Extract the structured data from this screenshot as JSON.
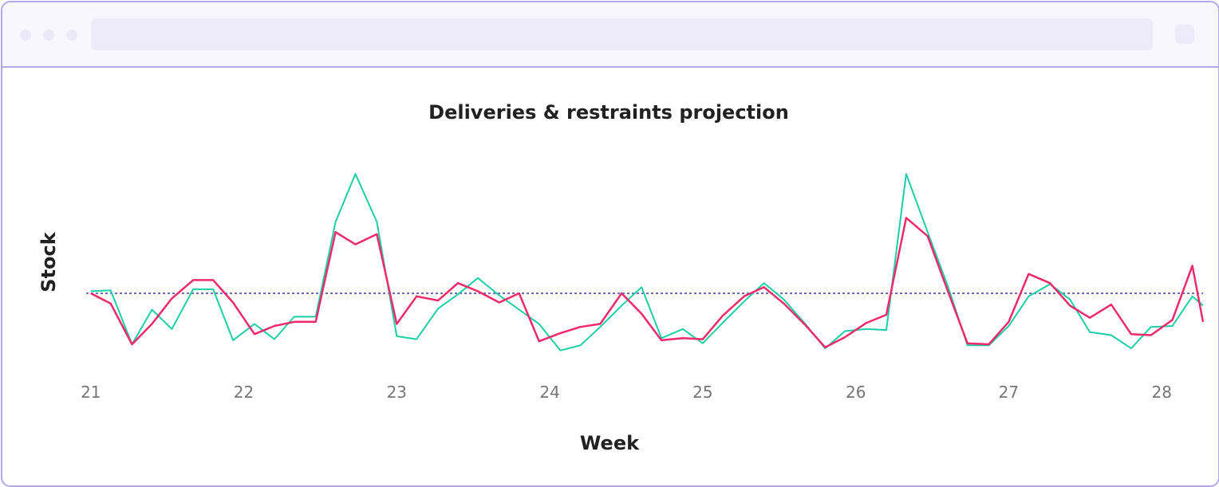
{
  "window": {
    "address_text": ""
  },
  "chart_data": {
    "type": "line",
    "title": "Deliveries & restraints projection",
    "xlabel": "Week",
    "ylabel": "Stock",
    "x_ticks": [
      "21",
      "22",
      "23",
      "24",
      "25",
      "26",
      "27",
      "28"
    ],
    "xlim": [
      20.97,
      28.27
    ],
    "ylim": [
      -5.2,
      8
    ],
    "y_ticks_shown": false,
    "grid": false,
    "legend": "none",
    "baseline": {
      "value": 0,
      "style": "dotted",
      "color": "#3f3fb5"
    },
    "x": [
      21.0,
      21.13,
      21.27,
      21.4,
      21.53,
      21.67,
      21.8,
      21.93,
      22.07,
      22.2,
      22.33,
      22.47,
      22.6,
      22.73,
      22.87,
      23.0,
      23.13,
      23.27,
      23.4,
      23.53,
      23.67,
      23.8,
      23.93,
      24.07,
      24.2,
      24.33,
      24.47,
      24.6,
      24.73,
      24.87,
      25.0,
      25.13,
      25.27,
      25.4,
      25.53,
      25.67,
      25.8,
      25.93,
      26.07,
      26.2,
      26.33,
      26.47,
      26.6,
      26.73,
      26.87,
      27.0,
      27.13,
      27.27,
      27.4,
      27.53,
      27.67,
      27.8,
      27.93,
      28.07,
      28.2
    ],
    "series": [
      {
        "color": "#1bcfa6",
        "values": [
          0.2,
          0.3,
          -5.0,
          -1.6,
          -3.5,
          0.4,
          0.4,
          -4.6,
          -3.0,
          -4.5,
          -2.3,
          -2.3,
          7.0,
          11.7,
          7.0,
          -4.2,
          -4.5,
          -1.5,
          -0.1,
          1.5,
          -0.2,
          -1.6,
          -3.0,
          -5.6,
          -5.1,
          -3.3,
          -1.2,
          0.6,
          -4.4,
          -3.5,
          -4.9,
          -2.9,
          -0.8,
          1.0,
          -0.6,
          -3.0,
          -5.4,
          -3.7,
          -3.5,
          -3.6,
          11.7,
          6.0,
          0.8,
          -5.1,
          -5.1,
          -3.2,
          -0.3,
          0.9,
          -0.6,
          -3.8,
          -4.1,
          -5.4,
          -3.3,
          -3.2,
          -0.3
        ],
        "extra_x": 28.27,
        "extra_value": -1.2
      },
      {
        "color": "#ee2a6a",
        "values": [
          0.0,
          -1.0,
          -5.0,
          -3.0,
          -0.5,
          1.3,
          1.3,
          -0.9,
          -4.0,
          -3.2,
          -2.8,
          -2.8,
          6.0,
          4.8,
          5.8,
          -3.0,
          -0.3,
          -0.7,
          1.0,
          0.2,
          -0.9,
          0.0,
          -4.7,
          -3.9,
          -3.3,
          -3.0,
          0.0,
          -2.0,
          -4.6,
          -4.4,
          -4.5,
          -2.2,
          -0.3,
          0.6,
          -1.0,
          -3.1,
          -5.3,
          -4.3,
          -2.9,
          -2.1,
          7.4,
          5.6,
          0.3,
          -4.9,
          -5.0,
          -2.8,
          1.9,
          1.0,
          -1.2,
          -2.4,
          -1.1,
          -4.0,
          -4.1,
          -2.6,
          2.7
        ],
        "extra_x": 28.27,
        "extra_value": -2.8
      }
    ]
  }
}
